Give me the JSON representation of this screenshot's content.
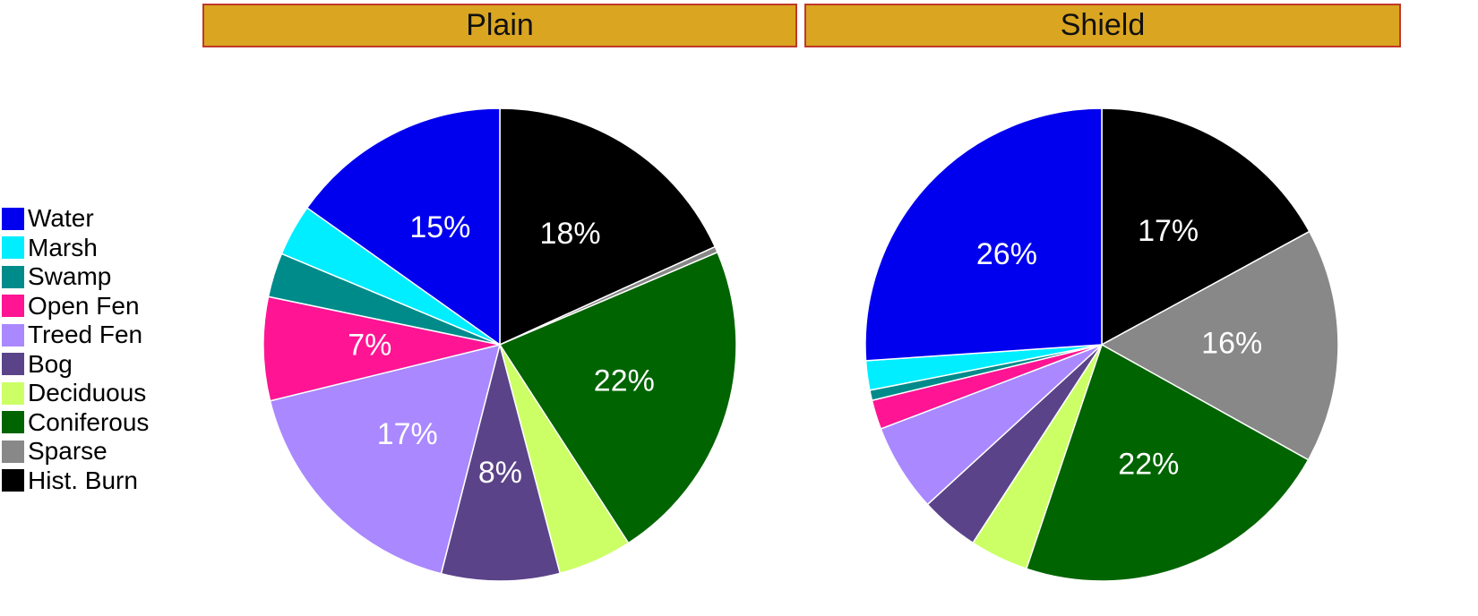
{
  "chart_data": {
    "type": "pie",
    "categories": [
      "Water",
      "Marsh",
      "Swamp",
      "Open Fen",
      "Treed Fen",
      "Bog",
      "Deciduous",
      "Coniferous",
      "Sparse",
      "Hist. Burn"
    ],
    "colors": [
      "#0000EE",
      "#00EEFF",
      "#008B8B",
      "#FF1493",
      "#AA88FF",
      "#5B4389",
      "#CCFF66",
      "#006400",
      "#888888",
      "#000000"
    ],
    "legend_placement": "left",
    "start_angle_deg": 0,
    "direction": "clockwise",
    "slice_order": [
      "Hist. Burn",
      "Sparse",
      "Coniferous",
      "Deciduous",
      "Bog",
      "Treed Fen",
      "Open Fen",
      "Swamp",
      "Marsh",
      "Water"
    ],
    "panels": [
      {
        "title": "Plain",
        "values": {
          "Hist. Burn": 18,
          "Sparse": 0.4,
          "Coniferous": 22,
          "Deciduous": 5,
          "Bog": 8,
          "Treed Fen": 17,
          "Open Fen": 7,
          "Swamp": 3,
          "Marsh": 3.5,
          "Water": 15
        },
        "labels": [
          {
            "category": "Hist. Burn",
            "text": "18%"
          },
          {
            "category": "Coniferous",
            "text": "22%"
          },
          {
            "category": "Bog",
            "text": "8%"
          },
          {
            "category": "Treed Fen",
            "text": "17%"
          },
          {
            "category": "Open Fen",
            "text": "7%"
          },
          {
            "category": "Water",
            "text": "15%"
          }
        ]
      },
      {
        "title": "Shield",
        "values": {
          "Hist. Burn": 17,
          "Sparse": 16,
          "Coniferous": 22,
          "Deciduous": 4,
          "Bog": 4,
          "Treed Fen": 6,
          "Open Fen": 2,
          "Swamp": 0.7,
          "Marsh": 2,
          "Water": 26
        },
        "labels": [
          {
            "category": "Hist. Burn",
            "text": "17%"
          },
          {
            "category": "Sparse",
            "text": "16%"
          },
          {
            "category": "Coniferous",
            "text": "22%"
          },
          {
            "category": "Water",
            "text": "26%"
          }
        ]
      }
    ]
  }
}
